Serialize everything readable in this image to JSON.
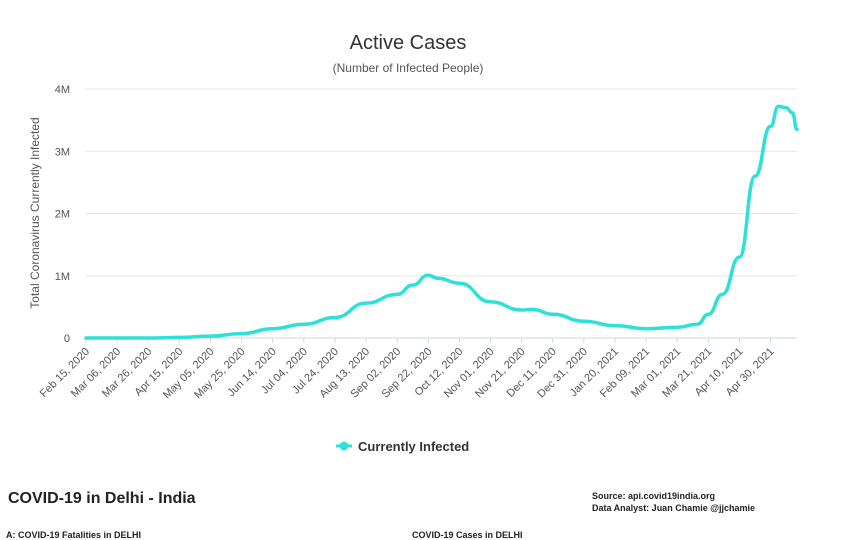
{
  "chart_data": {
    "type": "line",
    "title": "Active Cases",
    "subtitle": "(Number of Infected People)",
    "ylabel": "Total Coronavirus Currently Infected",
    "xlabel": "",
    "ylim": [
      0,
      4000000
    ],
    "y_ticks": [
      0,
      1000000,
      2000000,
      3000000,
      4000000
    ],
    "y_tick_labels": [
      "0",
      "1M",
      "2M",
      "3M",
      "4M"
    ],
    "x_range": [
      "2020-02-15",
      "2021-05-17"
    ],
    "x_tick_labels": [
      "Feb 15, 2020",
      "Mar 06, 2020",
      "Mar 26, 2020",
      "Apr 15, 2020",
      "May 05, 2020",
      "May 25, 2020",
      "Jun 14, 2020",
      "Jul 04, 2020",
      "Jul 24, 2020",
      "Aug 13, 2020",
      "Sep 02, 2020",
      "Sep 22, 2020",
      "Oct 12, 2020",
      "Nov 01, 2020",
      "Nov 21, 2020",
      "Dec 11, 2020",
      "Dec 31, 2020",
      "Jan 20, 2021",
      "Feb 09, 2021",
      "Mar 01, 2021",
      "Mar 21, 2021",
      "Apr 10, 2021",
      "Apr 30, 2021"
    ],
    "grid": true,
    "legend_position": "bottom-center",
    "series": [
      {
        "name": "Currently Infected",
        "color": "#2de0d8",
        "points": [
          [
            "2020-02-15",
            3
          ],
          [
            "2020-03-06",
            30
          ],
          [
            "2020-03-26",
            600
          ],
          [
            "2020-04-15",
            9000
          ],
          [
            "2020-05-05",
            30000
          ],
          [
            "2020-05-25",
            70000
          ],
          [
            "2020-06-14",
            150000
          ],
          [
            "2020-07-04",
            220000
          ],
          [
            "2020-07-24",
            330000
          ],
          [
            "2020-08-13",
            560000
          ],
          [
            "2020-09-02",
            700000
          ],
          [
            "2020-09-12",
            850000
          ],
          [
            "2020-09-22",
            1010000
          ],
          [
            "2020-09-28",
            960000
          ],
          [
            "2020-10-12",
            880000
          ],
          [
            "2020-11-01",
            580000
          ],
          [
            "2020-11-21",
            450000
          ],
          [
            "2020-11-28",
            460000
          ],
          [
            "2020-12-11",
            380000
          ],
          [
            "2020-12-31",
            270000
          ],
          [
            "2021-01-20",
            200000
          ],
          [
            "2021-02-09",
            150000
          ],
          [
            "2021-03-01",
            170000
          ],
          [
            "2021-03-14",
            220000
          ],
          [
            "2021-03-21",
            380000
          ],
          [
            "2021-03-30",
            700000
          ],
          [
            "2021-04-10",
            1300000
          ],
          [
            "2021-04-20",
            2600000
          ],
          [
            "2021-04-30",
            3400000
          ],
          [
            "2021-05-05",
            3720000
          ],
          [
            "2021-05-10",
            3700000
          ],
          [
            "2021-05-14",
            3620000
          ],
          [
            "2021-05-17",
            3350000
          ]
        ]
      }
    ]
  },
  "footer": {
    "title": "COVID-19 in Delhi - India",
    "source": "Source: api.covid19india.org",
    "analyst": "Data Analyst:  Juan Chamie @jjchamie",
    "cut_left": "A: COVID-19 Fatalities in DELHI",
    "cut_right": "COVID-19 Cases in DELHI"
  }
}
